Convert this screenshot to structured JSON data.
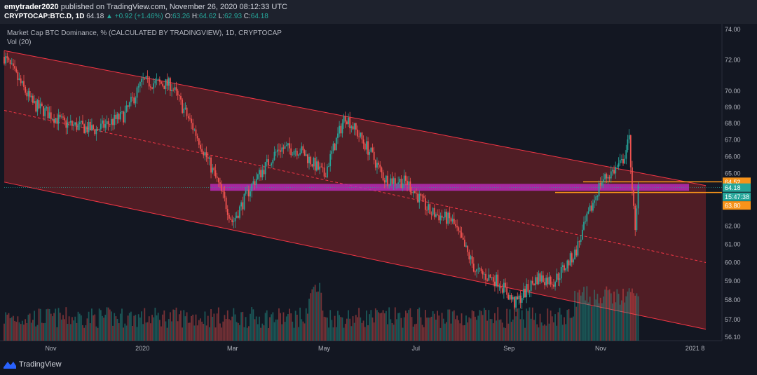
{
  "header": {
    "author": "emytrader2020",
    "published_text": "published on TradingView.com, November 26, 2020 08:12:33 UTC",
    "symbol_line": "CRYPTOCAP:BTC.D, 1D",
    "last": "64.18",
    "change": "▲ +0.92 (+1.46%)",
    "o_label": "O:",
    "o": "63.26",
    "h_label": "H:",
    "h": "64.62",
    "l_label": "L:",
    "l": "62.93",
    "c_label": "C:",
    "c": "64.18"
  },
  "legend": {
    "title": "Market Cap BTC Dominance, % (CALCULATED BY TRADINGVIEW), 1D, CRYPTOCAP",
    "volume": "Vol (20)"
  },
  "footer": {
    "brand": "TradingView"
  },
  "colors": {
    "background": "#131722",
    "up": "#26a69a",
    "down": "#ef5350",
    "channel_fill": "#5c1f26",
    "channel_line": "#f23645",
    "zone": "#b52bb5",
    "orange": "#f7931a"
  },
  "chart_data": {
    "type": "candlestick",
    "y_scale": "log",
    "ylim": [
      56.1,
      74.0
    ],
    "y_ticks": [
      "74.00",
      "72.00",
      "70.00",
      "69.00",
      "68.00",
      "67.00",
      "66.00",
      "65.00",
      "64.52",
      "64.18",
      "15:47:38",
      "63.80",
      "62.00",
      "61.00",
      "60.00",
      "59.00",
      "58.00",
      "57.00",
      "56.10"
    ],
    "x_ticks": [
      "Nov",
      "2020",
      "Mar",
      "May",
      "Jul",
      "Sep",
      "Nov",
      "2021",
      "8"
    ],
    "price_labels": [
      {
        "text": "64.52",
        "value": 64.52,
        "style": "orange"
      },
      {
        "text": "64.18",
        "value": 64.18,
        "style": "teal"
      },
      {
        "text": "15:47:38",
        "value": 63.98,
        "style": "teal"
      },
      {
        "text": "63.80",
        "value": 63.8,
        "style": "orange"
      }
    ],
    "approx_close_path": [
      [
        "2019-10-01",
        72.2
      ],
      [
        "2019-10-20",
        69.2
      ],
      [
        "2019-11-10",
        68.0
      ],
      [
        "2019-12-01",
        67.6
      ],
      [
        "2019-12-20",
        68.5
      ],
      [
        "2020-01-01",
        70.6
      ],
      [
        "2020-01-20",
        70.4
      ],
      [
        "2020-02-05",
        67.5
      ],
      [
        "2020-02-20",
        64.5
      ],
      [
        "2020-03-01",
        62.2
      ],
      [
        "2020-03-15",
        64.5
      ],
      [
        "2020-04-01",
        66.5
      ],
      [
        "2020-04-15",
        66.4
      ],
      [
        "2020-05-01",
        64.9
      ],
      [
        "2020-05-15",
        68.5
      ],
      [
        "2020-06-01",
        66.2
      ],
      [
        "2020-06-10",
        64.7
      ],
      [
        "2020-06-25",
        64.5
      ],
      [
        "2020-07-10",
        62.8
      ],
      [
        "2020-07-25",
        62.3
      ],
      [
        "2020-08-10",
        59.5
      ],
      [
        "2020-08-25",
        59.0
      ],
      [
        "2020-09-05",
        57.8
      ],
      [
        "2020-09-20",
        59.2
      ],
      [
        "2020-10-01",
        59.0
      ],
      [
        "2020-10-15",
        60.5
      ],
      [
        "2020-11-01",
        64.5
      ],
      [
        "2020-11-15",
        65.6
      ],
      [
        "2020-11-20",
        67.0
      ],
      [
        "2020-11-24",
        61.5
      ],
      [
        "2020-11-26",
        64.18
      ]
    ],
    "channel": {
      "upper": [
        [
          "2019-10-01",
          72.6
        ],
        [
          "2021-01-10",
          64.3
        ]
      ],
      "mid": [
        [
          "2019-10-01",
          68.8
        ],
        [
          "2021-01-10",
          60.0
        ]
      ],
      "lower": [
        [
          "2019-10-01",
          64.5
        ],
        [
          "2021-01-10",
          56.5
        ]
      ]
    },
    "horizontal_lines": [
      {
        "value": 64.52
      },
      {
        "value": 63.9
      }
    ],
    "zone": {
      "from": 64.0,
      "to": 64.4
    }
  }
}
